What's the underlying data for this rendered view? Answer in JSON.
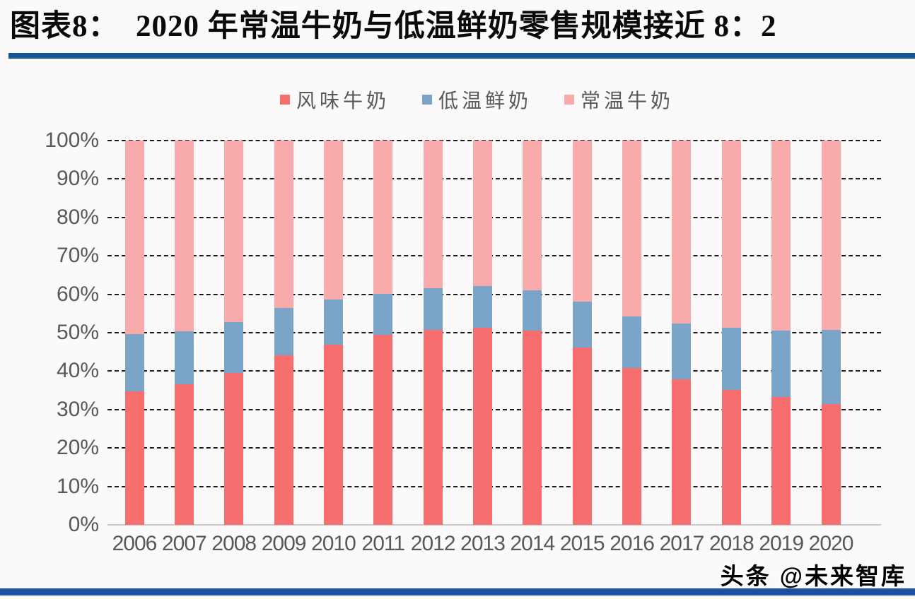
{
  "header": {
    "title": "图表8：  2020 年常温牛奶与低温鲜奶零售规模接近 8：2"
  },
  "watermark": {
    "text": "头条 @未来智库"
  },
  "colors": {
    "rule_top": "#175592",
    "rule_bottom": "#1c4fa3",
    "axis_text": "#595959",
    "gridline": "#1a1a1a",
    "baseline": "#c6c6c6"
  },
  "chart_data": {
    "type": "bar",
    "stacked": true,
    "title": "2020 年常温牛奶与低温鲜奶零售规模接近 8：2",
    "categories": [
      "2006",
      "2007",
      "2008",
      "2009",
      "2010",
      "2011",
      "2012",
      "2013",
      "2014",
      "2015",
      "2016",
      "2017",
      "2018",
      "2019",
      "2020"
    ],
    "series": [
      {
        "name": "风味牛奶",
        "color": "#f76e6e",
        "values": [
          34.7,
          36.5,
          39.5,
          44.1,
          46.9,
          49.5,
          50.8,
          51.3,
          50.5,
          46.1,
          40.9,
          37.9,
          35.2,
          33.3,
          31.4
        ]
      },
      {
        "name": "低温鲜奶",
        "color": "#7aa5c9",
        "values": [
          14.9,
          13.8,
          13.2,
          12.4,
          11.8,
          10.6,
          10.8,
          10.8,
          10.6,
          11.9,
          13.4,
          14.5,
          16.1,
          17.3,
          19.3
        ]
      },
      {
        "name": "常温牛奶",
        "color": "#f9abac",
        "values": [
          50.4,
          49.7,
          47.3,
          43.5,
          41.3,
          39.9,
          38.4,
          37.9,
          38.9,
          42.0,
          45.7,
          47.6,
          48.7,
          49.4,
          49.3
        ]
      }
    ],
    "ylim": [
      0,
      100
    ],
    "yticks_top_to_bottom": [
      "100%",
      "90%",
      "80%",
      "70%",
      "60%",
      "50%",
      "40%",
      "30%",
      "20%",
      "10%",
      "0%"
    ],
    "grid": "horizontal-dashed",
    "legend_position": "top-center"
  }
}
